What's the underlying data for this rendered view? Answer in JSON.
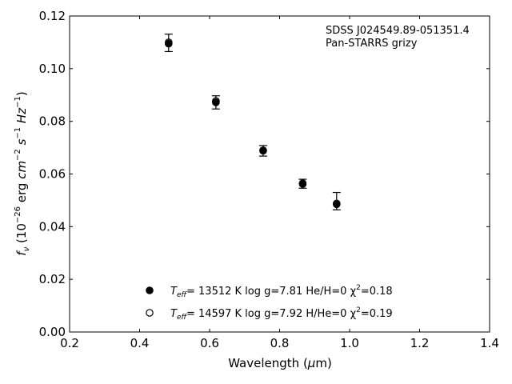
{
  "chart_data": {
    "type": "scatter",
    "xlabel": "Wavelength (μm)",
    "ylabel": "f_ν (10^-26 erg cm^-2 s^-1 Hz^-1)",
    "xlim": [
      0.2,
      1.4
    ],
    "ylim": [
      0.0,
      0.12
    ],
    "x_ticks": [
      "0.2",
      "0.4",
      "0.6",
      "0.8",
      "1.0",
      "1.2",
      "1.4"
    ],
    "y_ticks": [
      "0.00",
      "0.02",
      "0.04",
      "0.06",
      "0.08",
      "0.10",
      "0.12"
    ],
    "grid": false,
    "annotation": [
      "SDSS J024549.89-051351.4",
      "Pan-STARRS grizy"
    ],
    "series": [
      {
        "name": "Teff= 13512 K  log g=7.81  He/H=0  χ2=0.18",
        "marker": "filled",
        "color": "#000000",
        "x": [
          0.483,
          0.618,
          0.753,
          0.866,
          0.963
        ],
        "y": [
          0.1095,
          0.0872,
          0.0688,
          0.0562,
          0.0485
        ]
      },
      {
        "name": "Teff= 14597 K  log g=7.92  H/He=0  χ2=0.19",
        "marker": "open",
        "color": "#000000",
        "x": [
          0.483,
          0.618,
          0.753,
          0.866,
          0.963
        ],
        "y": [
          0.11,
          0.0877,
          0.069,
          0.0565,
          0.0488
        ]
      }
    ],
    "observed": {
      "x": [
        0.483,
        0.618,
        0.753,
        0.866,
        0.963
      ],
      "y": [
        0.1098,
        0.0872,
        0.0688,
        0.0563,
        0.0497
      ],
      "yerr": [
        0.0033,
        0.0025,
        0.002,
        0.0017,
        0.0033
      ]
    },
    "legend_position": "lower-center",
    "legend": [
      {
        "marker": "filled",
        "label_prefix": "T",
        "label_sub": "eff",
        "label_main": "= 13512 K  log g=7.81  He/H=0  χ",
        "label_sup": "2",
        "label_tail": "=0.18"
      },
      {
        "marker": "open",
        "label_prefix": "T",
        "label_sub": "eff",
        "label_main": "= 14597 K  log g=7.92  H/He=0  χ",
        "label_sup": "2",
        "label_tail": "=0.19"
      }
    ]
  }
}
